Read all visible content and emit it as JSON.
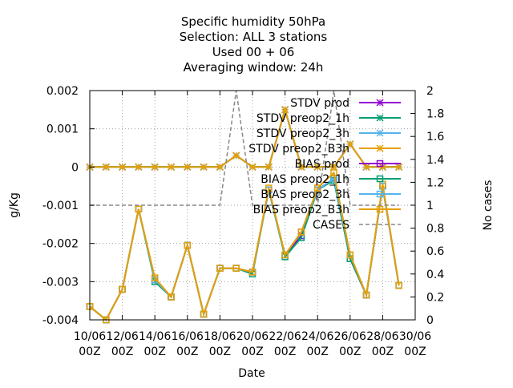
{
  "chart_data": {
    "type": "line",
    "title": [
      "Specific humidity 50hPa",
      "Selection: ALL      3 stations",
      "Used  00 + 06",
      "Averaging window: 24h"
    ],
    "xlabel": "Date",
    "ylabel": "g/Kg",
    "y2label": "No cases",
    "xlim": [
      0,
      20
    ],
    "ylim": [
      -0.004,
      0.002
    ],
    "y2lim": [
      0,
      2
    ],
    "grid": true,
    "legend_position": "top-right",
    "x_ticks": [
      {
        "v": 0,
        "l1": "10/06",
        "l2": "00Z"
      },
      {
        "v": 2,
        "l1": "12/06",
        "l2": "00Z"
      },
      {
        "v": 4,
        "l1": "14/06",
        "l2": "00Z"
      },
      {
        "v": 6,
        "l1": "16/06",
        "l2": "00Z"
      },
      {
        "v": 8,
        "l1": "18/06",
        "l2": "00Z"
      },
      {
        "v": 10,
        "l1": "20/06",
        "l2": "00Z"
      },
      {
        "v": 12,
        "l1": "22/06",
        "l2": "00Z"
      },
      {
        "v": 14,
        "l1": "24/06",
        "l2": "00Z"
      },
      {
        "v": 16,
        "l1": "26/06",
        "l2": "00Z"
      },
      {
        "v": 18,
        "l1": "28/06",
        "l2": "00Z"
      },
      {
        "v": 20,
        "l1": "30/06",
        "l2": "00Z"
      }
    ],
    "y_ticks": [
      "0.002",
      "0.001",
      "0",
      "-0.001",
      "-0.002",
      "-0.003",
      "-0.004"
    ],
    "y_tick_values": [
      0.002,
      0.001,
      0,
      -0.001,
      -0.002,
      -0.003,
      -0.004
    ],
    "y2_ticks": [
      "2",
      "1.8",
      "1.6",
      "1.4",
      "1.2",
      "1",
      "0.8",
      "0.6",
      "0.4",
      "0.2",
      "0"
    ],
    "y2_tick_values": [
      2,
      1.8,
      1.6,
      1.4,
      1.2,
      1,
      0.8,
      0.6,
      0.4,
      0.2,
      0
    ],
    "x": [
      0,
      1,
      2,
      3,
      4,
      5,
      6,
      7,
      8,
      9,
      10,
      11,
      12,
      13,
      14,
      15,
      16,
      17,
      18,
      19
    ],
    "series": [
      {
        "name": "STDV prod",
        "color": "#9400d3",
        "marker": "x",
        "dashed": false,
        "axis": "y",
        "values": [
          0,
          0,
          0,
          0,
          0,
          0,
          0,
          0,
          0,
          0.0003,
          0,
          0,
          0.0015,
          0,
          0,
          0,
          0.0006,
          0,
          0,
          0
        ]
      },
      {
        "name": "STDV preop2_1h",
        "color": "#009e73",
        "marker": "x",
        "dashed": false,
        "axis": "y",
        "values": [
          0,
          0,
          0,
          0,
          0,
          0,
          0,
          0,
          0,
          0.0003,
          0,
          0,
          0.0015,
          0,
          0,
          0,
          0.0006,
          0,
          0,
          0
        ]
      },
      {
        "name": "STDV preop2_3h",
        "color": "#56b4e9",
        "marker": "x",
        "dashed": false,
        "axis": "y",
        "values": [
          0,
          0,
          0,
          0,
          0,
          0,
          0,
          0,
          0,
          0.0003,
          0,
          0,
          0.0015,
          0,
          0,
          0,
          0.0006,
          0,
          0,
          0
        ]
      },
      {
        "name": "STDV preop2_B3h",
        "color": "#e69f00",
        "marker": "x",
        "dashed": false,
        "axis": "y",
        "values": [
          0,
          0,
          0,
          0,
          0,
          0,
          0,
          0,
          0,
          0.0003,
          0,
          0,
          0.0015,
          0,
          0,
          0,
          0.0006,
          0,
          0,
          0
        ]
      },
      {
        "name": "BIAS prod",
        "color": "#9400d3",
        "marker": "square",
        "dashed": false,
        "axis": "y",
        "values": [
          -0.00365,
          -0.004,
          -0.0032,
          -0.0011,
          -0.00295,
          -0.0034,
          -0.00205,
          -0.00385,
          -0.00265,
          -0.00265,
          -0.00275,
          -0.0006,
          -0.0023,
          -0.0018,
          -0.0006,
          -0.0003,
          -0.0024,
          -0.00335,
          -0.0005,
          -0.0031
        ]
      },
      {
        "name": "BIAS preop2_1h",
        "color": "#009e73",
        "marker": "square",
        "dashed": false,
        "axis": "y",
        "values": [
          -0.00365,
          -0.004,
          -0.0032,
          -0.0011,
          -0.003,
          -0.0034,
          -0.00205,
          -0.00385,
          -0.00265,
          -0.00265,
          -0.0028,
          -0.0006,
          -0.00235,
          -0.00185,
          -0.0006,
          -0.00035,
          -0.0024,
          -0.00335,
          -0.0005,
          -0.0031
        ]
      },
      {
        "name": "BIAS preop2_3h",
        "color": "#56b4e9",
        "marker": "square",
        "dashed": false,
        "axis": "y",
        "values": [
          -0.00365,
          -0.004,
          -0.0032,
          -0.0011,
          -0.00295,
          -0.0034,
          -0.00205,
          -0.00385,
          -0.00265,
          -0.00265,
          -0.00275,
          -0.0006,
          -0.0023,
          -0.0017,
          -0.0006,
          -0.0003,
          -0.0023,
          -0.00335,
          -0.0005,
          -0.0031
        ]
      },
      {
        "name": "BIAS preop2_B3h",
        "color": "#e69f00",
        "marker": "square",
        "dashed": false,
        "axis": "y",
        "values": [
          -0.00365,
          -0.004,
          -0.0032,
          -0.0011,
          -0.0029,
          -0.0034,
          -0.00205,
          -0.00385,
          -0.00265,
          -0.00265,
          -0.00275,
          -0.00055,
          -0.0023,
          -0.0017,
          -0.00055,
          -0.00015,
          -0.0023,
          -0.00335,
          -0.00045,
          -0.0031
        ]
      },
      {
        "name": "CASES",
        "color": "#888888",
        "marker": "none",
        "dashed": true,
        "axis": "y2",
        "values": [
          1,
          1,
          1,
          1,
          1,
          1,
          1,
          1,
          1,
          2,
          1,
          1,
          1,
          1,
          1,
          2,
          1,
          1,
          1,
          1
        ]
      }
    ]
  }
}
